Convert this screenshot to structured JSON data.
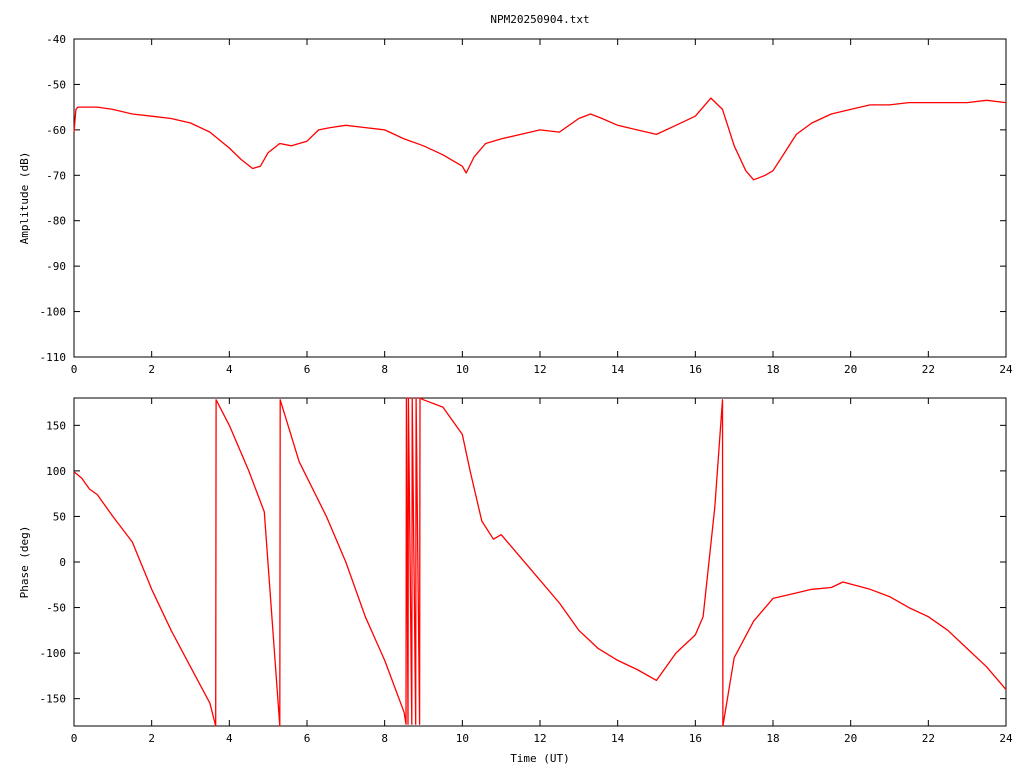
{
  "title": "NPM20250904.txt",
  "colors": {
    "series": "#ff0000",
    "axis": "#000000",
    "background": "#ffffff"
  },
  "chart_data": [
    {
      "type": "line",
      "title": "NPM20250904.txt",
      "xlabel": "",
      "ylabel": "Amplitude (dB)",
      "xlim": [
        0,
        24
      ],
      "ylim": [
        -110,
        -40
      ],
      "xticks": [
        "0",
        "2",
        "4",
        "6",
        "8",
        "10",
        "12",
        "14",
        "16",
        "18",
        "20",
        "22",
        "24"
      ],
      "yticks": [
        "-40",
        "-50",
        "-60",
        "-70",
        "-80",
        "-90",
        "-100",
        "-110"
      ],
      "grid": false,
      "series": [
        {
          "x": [
            0,
            0.05,
            0.1,
            0.3,
            0.6,
            1,
            1.5,
            2,
            2.5,
            3,
            3.5,
            4,
            4.3,
            4.6,
            4.8,
            5,
            5.3,
            5.6,
            6,
            6.3,
            6.6,
            7,
            7.5,
            8,
            8.5,
            9,
            9.5,
            10,
            10.1,
            10.3,
            10.6,
            11,
            11.5,
            12,
            12.5,
            13,
            13.3,
            13.6,
            14,
            14.5,
            15,
            15.5,
            16,
            16.4,
            16.7,
            17,
            17.3,
            17.5,
            17.8,
            18,
            18.3,
            18.6,
            19,
            19.5,
            20,
            20.5,
            21,
            21.5,
            22,
            22.5,
            23,
            23.5,
            24
          ],
          "y": [
            -60.5,
            -55.5,
            -55,
            -55,
            -55,
            -55.5,
            -56.5,
            -57,
            -57.5,
            -58.5,
            -60.5,
            -64,
            -66.5,
            -68.5,
            -68,
            -65,
            -63,
            -63.5,
            -62.5,
            -60,
            -59.5,
            -59,
            -59.5,
            -60,
            -62,
            -63.5,
            -65.5,
            -68,
            -69.5,
            -66,
            -63,
            -62,
            -61,
            -60,
            -60.5,
            -57.5,
            -56.5,
            -57.5,
            -59,
            -60,
            -61,
            -59,
            -57,
            -53,
            -55.5,
            -63.5,
            -69,
            -71,
            -70,
            -69,
            -65,
            -61,
            -58.5,
            -56.5,
            -55.5,
            -54.5,
            -54.5,
            -54,
            -54,
            -54,
            -54,
            -53.5,
            -54
          ]
        }
      ]
    },
    {
      "type": "line",
      "title": "",
      "xlabel": "Time (UT)",
      "ylabel": "Phase (deg)",
      "xlim": [
        0,
        24
      ],
      "ylim": [
        -180,
        180
      ],
      "xticks": [
        "0",
        "2",
        "4",
        "6",
        "8",
        "10",
        "12",
        "14",
        "16",
        "18",
        "20",
        "22",
        "24"
      ],
      "yticks": [
        "150",
        "100",
        "50",
        "0",
        "-50",
        "-100",
        "-150"
      ],
      "grid": false,
      "series": [
        {
          "x": [
            0,
            0.2,
            0.4,
            0.6,
            1,
            1.5,
            2,
            2.5,
            3,
            3.5,
            3.65,
            3.66,
            4,
            4.5,
            4.9,
            5.3,
            5.31,
            5.8,
            6.5,
            7,
            7.5,
            8,
            8.5,
            8.55,
            8.56,
            8.6,
            8.61,
            8.7,
            8.71,
            8.8,
            8.81,
            8.9,
            8.91,
            9,
            9.5,
            10,
            10.2,
            10.5,
            10.8,
            11,
            11.5,
            12,
            12.5,
            13,
            13.5,
            14,
            14.5,
            15,
            15.5,
            16,
            16.2,
            16.5,
            16.7,
            16.71,
            17,
            17.5,
            18,
            18.5,
            19,
            19.5,
            19.8,
            20.5,
            21,
            21.5,
            22,
            22.5,
            23,
            23.5,
            24
          ],
          "y": [
            99,
            92,
            80,
            74,
            50,
            22,
            -30,
            -75,
            -115,
            -155,
            -180,
            178,
            150,
            100,
            55,
            -180,
            178,
            110,
            50,
            0,
            -60,
            -108,
            -165,
            -178,
            180,
            -178,
            180,
            -178,
            180,
            -178,
            180,
            -178,
            180,
            178,
            170,
            140,
            100,
            45,
            25,
            30,
            5,
            -20,
            -45,
            -75,
            -95,
            -108,
            -118,
            -130,
            -100,
            -80,
            -60,
            60,
            178,
            -180,
            -105,
            -65,
            -40,
            -35,
            -30,
            -28,
            -22,
            -30,
            -38,
            -50,
            -60,
            -75,
            -95,
            -115,
            -140
          ]
        }
      ]
    }
  ]
}
